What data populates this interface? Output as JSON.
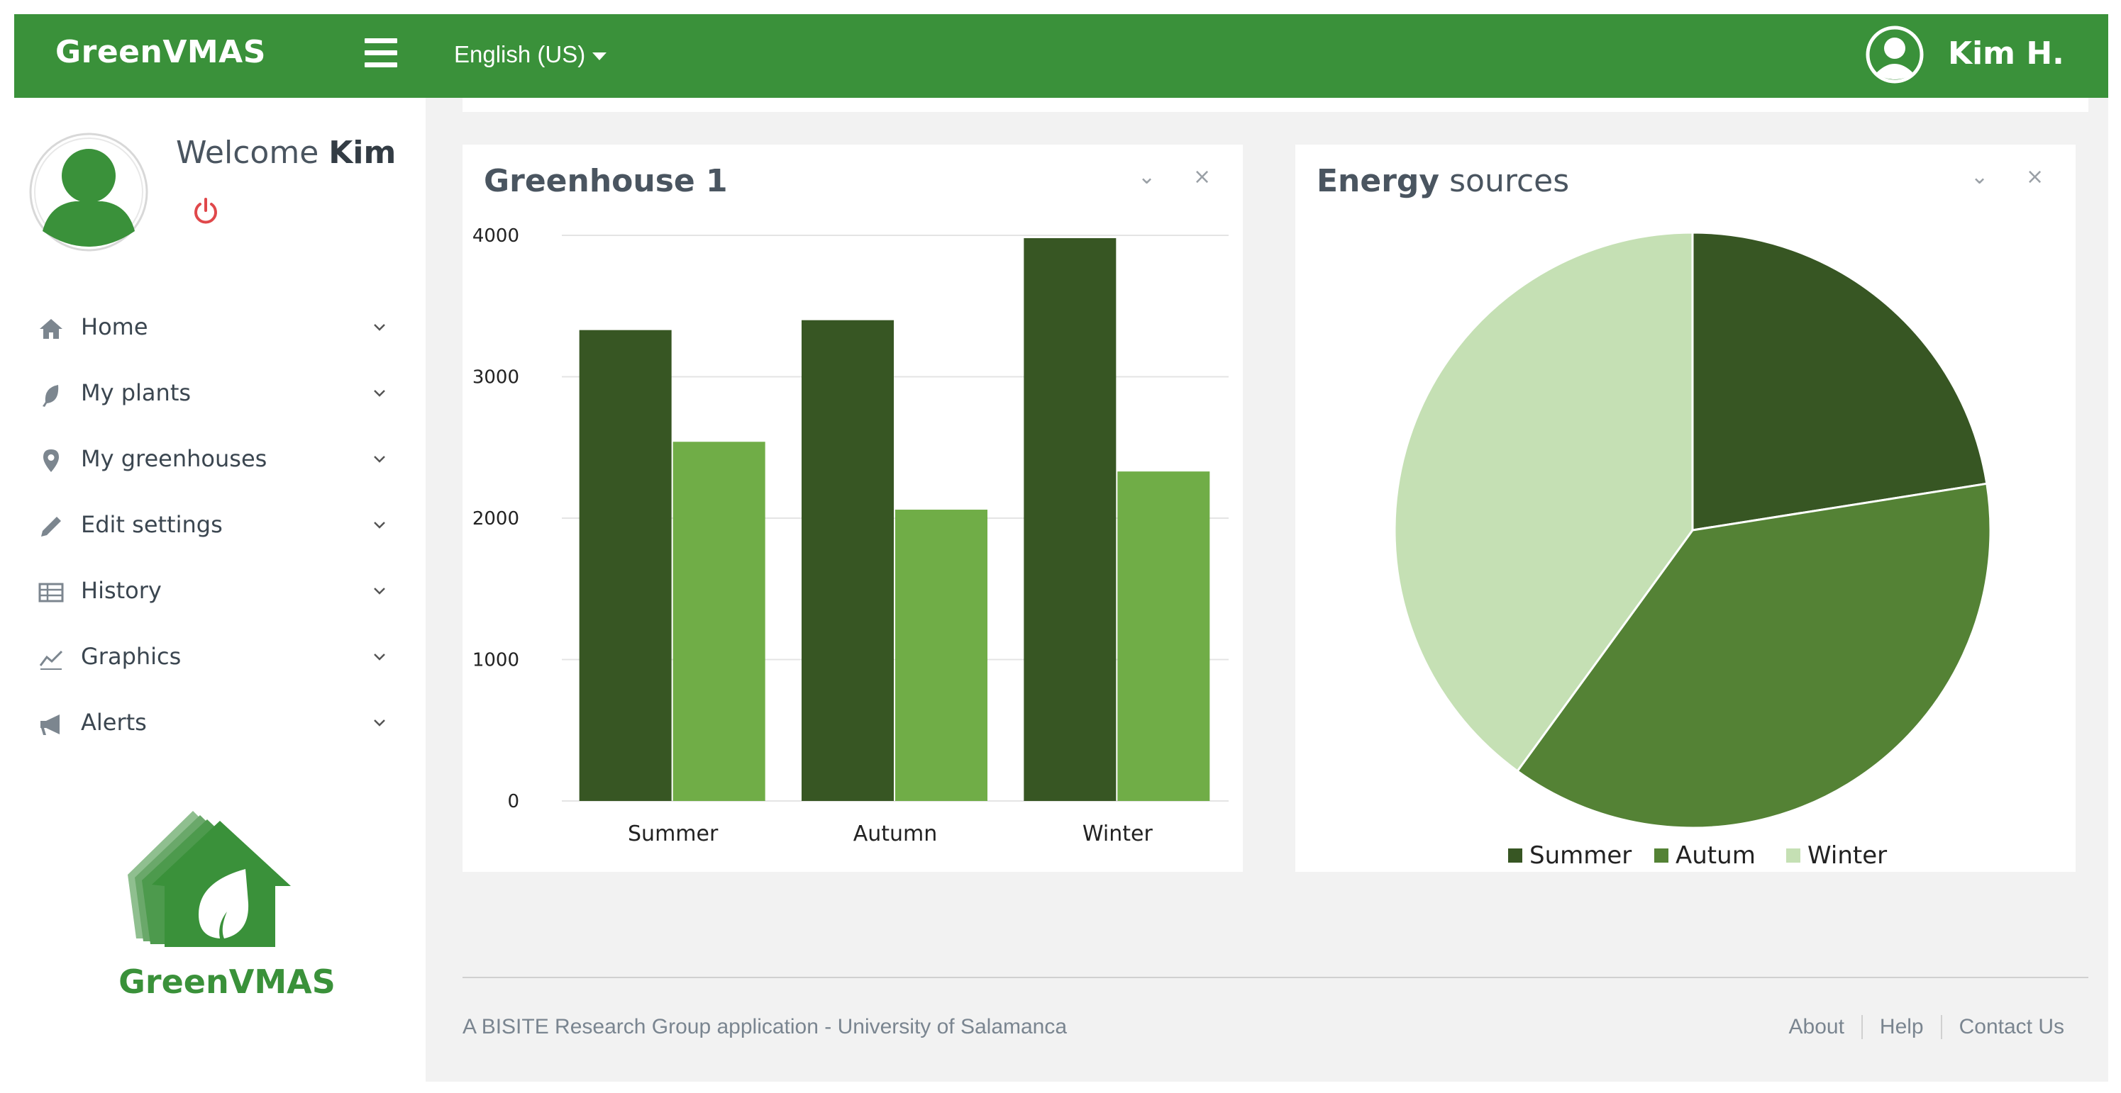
{
  "topbar": {
    "brand": "GreenVMAS",
    "language": "English (US)",
    "user_name": "Kim H."
  },
  "sidebar": {
    "welcome_prefix": "Welcome",
    "welcome_name": "Kim",
    "items": [
      {
        "label": "Home",
        "icon": "home-icon"
      },
      {
        "label": "My plants",
        "icon": "leaf-icon"
      },
      {
        "label": "My greenhouses",
        "icon": "map-pin-icon"
      },
      {
        "label": "Edit settings",
        "icon": "pencil-icon"
      },
      {
        "label": "History",
        "icon": "table-icon"
      },
      {
        "label": "Graphics",
        "icon": "line-chart-icon"
      },
      {
        "label": "Alerts",
        "icon": "megaphone-icon"
      }
    ],
    "logo_text": "GreenVMAS"
  },
  "panels": {
    "p1": {
      "title": "Greenhouse 1"
    },
    "p2": {
      "title_bold": "Energy",
      "title_rest": "sources"
    },
    "collapse_glyph": "⌄",
    "close_glyph": "×"
  },
  "colors": {
    "brand": "#3a913a",
    "dark_green": "#375623",
    "mid_green": "#548235",
    "light_green": "#70ad47",
    "pale_green": "#c5e0b4"
  },
  "chart_data": [
    {
      "type": "bar",
      "title": "Greenhouse 1",
      "categories": [
        "Summer",
        "Autumn",
        "Winter"
      ],
      "series": [
        {
          "values": [
            3330,
            3400,
            3980
          ],
          "color": "#375623"
        },
        {
          "values": [
            2540,
            2060,
            2330
          ],
          "color": "#70ad47"
        }
      ],
      "ylim": [
        0,
        4000
      ],
      "yticks": [
        0,
        1000,
        2000,
        3000,
        4000
      ],
      "grid": true
    },
    {
      "type": "pie",
      "title": "Energy sources",
      "labels": [
        "Summer",
        "Autum",
        "Winter"
      ],
      "values": [
        22.5,
        37.5,
        40.0
      ],
      "colors": [
        "#375623",
        "#548235",
        "#c5e0b4"
      ],
      "legend": "bottom"
    }
  ],
  "footer": {
    "credit": "A BISITE Research Group application - University of Salamanca",
    "links": [
      "About",
      "Help",
      "Contact Us"
    ]
  }
}
